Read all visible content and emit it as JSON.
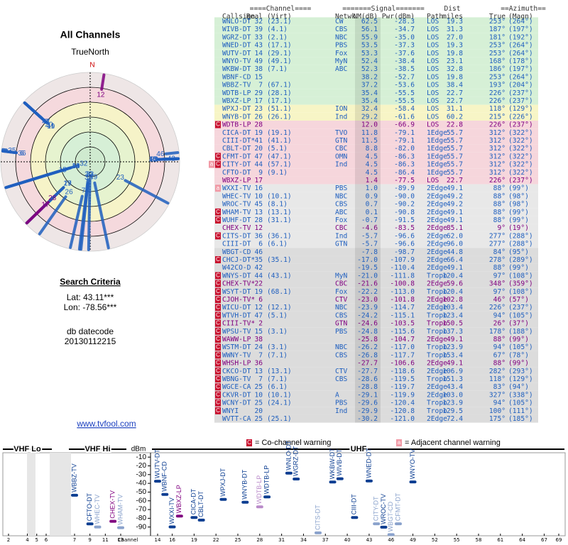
{
  "left": {
    "title": "All Channels",
    "north_label": "TrueNorth",
    "north": "N",
    "criteria_title": "Search Criteria",
    "lat": "Lat: 43.11***",
    "lon": "Lon: -78.56***",
    "db_label": "db datecode",
    "db_value": "20130112215",
    "link": "www.tvfool.com"
  },
  "table": {
    "group_headers": [
      "====Channel====",
      "=======Signal=======",
      "Dist",
      "==Azimuth=="
    ],
    "headers": [
      "Callsign",
      "Real",
      "(Virt)",
      "Netwk",
      "NM(dB)",
      "Pwr(dBm)",
      "Path",
      "miles",
      "True",
      "(Magn)"
    ],
    "color": "#1f5fbf",
    "rows": [
      {
        "cells": [
          "WNLO-DT",
          "32",
          "(23.1)",
          "CW",
          "62.5",
          "-28.3",
          "LOS",
          "19.3",
          "253°",
          "(264°)"
        ],
        "bg": "#d6f0d6"
      },
      {
        "cells": [
          "WIVB-DT",
          "39",
          "(4.1)",
          "CBS",
          "56.1",
          "-34.7",
          "LOS",
          "31.3",
          "187°",
          "(197°)"
        ],
        "bg": "#d6f0d6"
      },
      {
        "cells": [
          "WGRZ-DT",
          "33",
          "(2.1)",
          "NBC",
          "55.9",
          "-35.0",
          "LOS",
          "27.0",
          "181°",
          "(192°)"
        ],
        "bg": "#d6f0d6"
      },
      {
        "cells": [
          "WNED-DT",
          "43",
          "(17.1)",
          "PBS",
          "53.5",
          "-37.3",
          "LOS",
          "19.3",
          "253°",
          "(264°)"
        ],
        "bg": "#d6f0d6"
      },
      {
        "cells": [
          "WUTV-DT",
          "14",
          "(29.1)",
          "Fox",
          "53.3",
          "-37.6",
          "LOS",
          "19.8",
          "253°",
          "(264°)"
        ],
        "bg": "#d6f0d6"
      },
      {
        "cells": [
          "WNYO-TV",
          "49",
          "(49.1)",
          "MyN",
          "52.4",
          "-38.4",
          "LOS",
          "23.1",
          "168°",
          "(178°)"
        ],
        "bg": "#d6f0d6"
      },
      {
        "cells": [
          "WKBW-DT",
          "38",
          "(7.1)",
          "ABC",
          "52.3",
          "-38.5",
          "LOS",
          "32.8",
          "186°",
          "(197°)"
        ],
        "bg": "#d6f0d6"
      },
      {
        "cells": [
          "WBNF-CD",
          "15",
          null,
          null,
          "38.2",
          "-52.7",
          "LOS",
          "19.8",
          "253°",
          "(264°)"
        ],
        "bg": "#d6f0d6"
      },
      {
        "cells": [
          "WBBZ-TV",
          "7",
          "(67.1)",
          null,
          "37.2",
          "-53.6",
          "LOS",
          "38.4",
          "193°",
          "(204°)"
        ],
        "bg": "#d6f0d6"
      },
      {
        "cells": [
          "WDTB-LP",
          "29",
          "(28.1)",
          null,
          "35.4",
          "-55.5",
          "LOS",
          "22.7",
          "226°",
          "(237°)"
        ],
        "bg": "#d6f0d6"
      },
      {
        "cells": [
          "WBXZ-LP",
          "17",
          "(17.1)",
          null,
          "35.4",
          "-55.5",
          "LOS",
          "22.7",
          "226°",
          "(237°)"
        ],
        "bg": "#d6f0d6"
      },
      {
        "cells": [
          "WPXJ-DT",
          "23",
          "(51.1)",
          "ION",
          "32.4",
          "-58.4",
          "LOS",
          "31.1",
          "118°",
          "(129°)"
        ],
        "bg": "#f7f5c6"
      },
      {
        "cells": [
          "WNYB-DT",
          "26",
          "(26.1)",
          "Ind",
          "29.2",
          "-61.6",
          "LOS",
          "60.2",
          "215°",
          "(226°)"
        ],
        "bg": "#f7f5c6"
      },
      {
        "cells": [
          "WDTB-LP",
          "28",
          null,
          null,
          "12.0",
          "-66.9",
          "LOS",
          "22.8",
          "226°",
          "(237°)"
        ],
        "bg": "#f6d6dc",
        "color": "#800080",
        "warn": [
          "C"
        ]
      },
      {
        "cells": [
          "CICA-DT",
          "19",
          "(19.1)",
          "TVO",
          "11.8",
          "-79.1",
          "1Edge",
          "55.7",
          "312°",
          "(322°)"
        ],
        "bg": "#f6d6dc"
      },
      {
        "cells": [
          "CIII-DT*",
          "41",
          "(41.1)",
          "GTN",
          "11.5",
          "-79.1",
          "1Edge",
          "55.7",
          "312°",
          "(322°)"
        ],
        "bg": "#f6d6dc"
      },
      {
        "cells": [
          "CBLT-DT",
          "20",
          "(5.1)",
          "CBC",
          "8.8",
          "-82.0",
          "1Edge",
          "55.7",
          "312°",
          "(322°)"
        ],
        "bg": "#f6d6dc"
      },
      {
        "cells": [
          "CFMT-DT",
          "47",
          "(47.1)",
          "OMN",
          "4.5",
          "-86.3",
          "1Edge",
          "55.7",
          "312°",
          "(322°)"
        ],
        "bg": "#f6d6dc",
        "warn": [
          "C"
        ]
      },
      {
        "cells": [
          "CITY-DT",
          "44",
          "(57.1)",
          "Ind",
          "4.5",
          "-86.3",
          "1Edge",
          "55.7",
          "312°",
          "(322°)"
        ],
        "bg": "#f6d6dc",
        "warn": [
          "a",
          "C"
        ]
      },
      {
        "cells": [
          "CFTO-DT",
          "9",
          "(9.1)",
          null,
          "4.5",
          "-86.4",
          "1Edge",
          "55.7",
          "312°",
          "(322°)"
        ],
        "bg": "#f6d6dc"
      },
      {
        "cells": [
          "WBXZ-LP",
          "17",
          null,
          null,
          "1.4",
          "-77.5",
          "LOS",
          "22.7",
          "226°",
          "(237°)"
        ],
        "bg": "#f6d6dc",
        "color": "#800080"
      },
      {
        "cells": [
          "WXXI-TV",
          "16",
          null,
          "PBS",
          "1.0",
          "-89.9",
          "2Edge",
          "49.1",
          "88°",
          "(99°)"
        ],
        "bg": "#e8e8e8",
        "warn": [
          "a"
        ]
      },
      {
        "cells": [
          "WHEC-TV",
          "10",
          "(10.1)",
          "NBC",
          "0.9",
          "-90.0",
          "2Edge",
          "49.2",
          "88°",
          "(98°)"
        ],
        "bg": "#e8e8e8"
      },
      {
        "cells": [
          "WROC-TV",
          "45",
          "(8.1)",
          "CBS",
          "0.7",
          "-90.2",
          "2Edge",
          "49.2",
          "88°",
          "(98°)"
        ],
        "bg": "#e8e8e8"
      },
      {
        "cells": [
          "WHAM-TV",
          "13",
          "(13.1)",
          "ABC",
          "0.1",
          "-90.8",
          "2Edge",
          "49.1",
          "88°",
          "(99°)"
        ],
        "bg": "#e8e8e8",
        "warn": [
          "C"
        ]
      },
      {
        "cells": [
          "WUHF-DT",
          "28",
          "(31.1)",
          "Fox",
          "-0.7",
          "-91.5",
          "2Edge",
          "49.1",
          "88°",
          "(99°)"
        ],
        "bg": "#e8e8e8",
        "warn": [
          "C"
        ]
      },
      {
        "cells": [
          "CHEX-TV",
          "12",
          null,
          "CBC",
          "-4.6",
          "-83.5",
          "2Edge",
          "85.1",
          "9°",
          "(19°)"
        ],
        "bg": "#e8e8e8",
        "color": "#800080"
      },
      {
        "cells": [
          "CITS-DT",
          "36",
          "(36.1)",
          "Ind",
          "-5.7",
          "-96.6",
          "2Edge",
          "62.0",
          "277°",
          "(288°)"
        ],
        "bg": "#e8e8e8",
        "warn": [
          "C"
        ]
      },
      {
        "cells": [
          "CIII-DT",
          "6",
          "(6.1)",
          "GTN",
          "-5.7",
          "-96.6",
          "2Edge",
          "96.0",
          "277°",
          "(288°)"
        ],
        "bg": "#e8e8e8"
      },
      {
        "cells": [
          "WBGT-CD",
          "46",
          null,
          null,
          "-7.8",
          "-98.7",
          "2Edge",
          "44.8",
          "84°",
          "(95°)"
        ],
        "bg": "#dcdcdc"
      },
      {
        "cells": [
          "CHCJ-DT*",
          "35",
          "(35.1)",
          null,
          "-17.0",
          "-107.9",
          "2Edge",
          "66.4",
          "278°",
          "(289°)"
        ],
        "bg": "#dcdcdc",
        "warn": [
          "C"
        ]
      },
      {
        "cells": [
          "W42CO-D",
          "42",
          null,
          null,
          "-19.5",
          "-110.4",
          "2Edge",
          "49.1",
          "88°",
          "(99°)"
        ],
        "bg": "#dcdcdc"
      },
      {
        "cells": [
          "WNYS-DT",
          "44",
          "(43.1)",
          "MyN",
          "-21.0",
          "-111.8",
          "Tropo",
          "120.4",
          "97°",
          "(108°)"
        ],
        "bg": "#dcdcdc",
        "warn": [
          "C"
        ]
      },
      {
        "cells": [
          "CHEX-TV*",
          "22",
          null,
          "CBC",
          "-21.6",
          "-100.8",
          "2Edge",
          "59.6",
          "348°",
          "(359°)"
        ],
        "bg": "#dcdcdc",
        "color": "#800080",
        "warn": [
          "C"
        ]
      },
      {
        "cells": [
          "WSYT-DT",
          "19",
          "(68.1)",
          "Fox",
          "-22.2",
          "-113.0",
          "Tropo",
          "120.4",
          "97°",
          "(108°)"
        ],
        "bg": "#dcdcdc",
        "warn": [
          "C"
        ]
      },
      {
        "cells": [
          "CJOH-TV*",
          "6",
          null,
          "CTV",
          "-23.0",
          "-101.8",
          "2Edge",
          "102.8",
          "46°",
          "(57°)"
        ],
        "bg": "#dcdcdc",
        "color": "#800080",
        "warn": [
          "C"
        ]
      },
      {
        "cells": [
          "WICU-DT",
          "12",
          "(12.1)",
          "NBC",
          "-23.9",
          "-114.7",
          "2Edge",
          "103.4",
          "226°",
          "(237°)"
        ],
        "bg": "#dcdcdc",
        "warn": [
          "C"
        ]
      },
      {
        "cells": [
          "WTVH-DT",
          "47",
          "(5.1)",
          "CBS",
          "-24.2",
          "-115.1",
          "Tropo",
          "123.4",
          "94°",
          "(105°)"
        ],
        "bg": "#dcdcdc",
        "warn": [
          "C"
        ]
      },
      {
        "cells": [
          "CIII-TV*",
          "2",
          null,
          "GTN",
          "-24.6",
          "-103.5",
          "Tropo",
          "150.5",
          "26°",
          "(37°)"
        ],
        "bg": "#dcdcdc",
        "color": "#800080",
        "warn": [
          "C"
        ]
      },
      {
        "cells": [
          "WPSU-TV",
          "15",
          "(3.1)",
          "PBS",
          "-24.8",
          "-115.6",
          "Tropo",
          "137.3",
          "178°",
          "(188°)"
        ],
        "bg": "#dcdcdc",
        "warn": [
          "C"
        ]
      },
      {
        "cells": [
          "WAWW-LP",
          "38",
          null,
          null,
          "-25.8",
          "-104.7",
          "2Edge",
          "49.1",
          "88°",
          "(99°)"
        ],
        "bg": "#dcdcdc",
        "color": "#800080",
        "warn": [
          "C"
        ]
      },
      {
        "cells": [
          "WSTM-DT",
          "24",
          "(3.1)",
          "NBC",
          "-26.2",
          "-117.0",
          "Tropo",
          "123.9",
          "94°",
          "(105°)"
        ],
        "bg": "#dcdcdc",
        "warn": [
          "C"
        ]
      },
      {
        "cells": [
          "WWNY-TV",
          "7",
          "(7.1)",
          "CBS",
          "-26.8",
          "-117.7",
          "Tropo",
          "153.4",
          "67°",
          "(78°)"
        ],
        "bg": "#dcdcdc",
        "warn": [
          "C"
        ]
      },
      {
        "cells": [
          "WHSH-LP",
          "36",
          null,
          null,
          "-27.7",
          "-106.6",
          "2Edge",
          "49.1",
          "88°",
          "(99°)"
        ],
        "bg": "#dcdcdc",
        "color": "#800080",
        "warn": [
          "C"
        ]
      },
      {
        "cells": [
          "CKCO-DT",
          "13",
          "(13.1)",
          "CTV",
          "-27.7",
          "-118.6",
          "2Edge",
          "106.9",
          "282°",
          "(293°)"
        ],
        "bg": "#dcdcdc",
        "warn": [
          "C"
        ]
      },
      {
        "cells": [
          "WBNG-TV",
          "7",
          "(7.1)",
          "CBS",
          "-28.6",
          "-119.5",
          "Tropo",
          "151.3",
          "118°",
          "(129°)"
        ],
        "bg": "#dcdcdc",
        "warn": [
          "C"
        ]
      },
      {
        "cells": [
          "WGCE-CA",
          "25",
          "(6.1)",
          null,
          "-28.8",
          "-119.7",
          "2Edge",
          "43.4",
          "83°",
          "(94°)"
        ],
        "bg": "#dcdcdc",
        "warn": [
          "C"
        ]
      },
      {
        "cells": [
          "CKVR-DT",
          "10",
          "(10.1)",
          "A",
          "-29.1",
          "-119.9",
          "2Edge",
          "103.0",
          "327°",
          "(338°)"
        ],
        "bg": "#dcdcdc",
        "warn": [
          "C"
        ]
      },
      {
        "cells": [
          "WCNY-DT",
          "25",
          "(24.1)",
          "PBS",
          "-29.6",
          "-120.4",
          "Tropo",
          "123.9",
          "94°",
          "(105°)"
        ],
        "bg": "#dcdcdc",
        "warn": [
          "C"
        ]
      },
      {
        "cells": [
          "WNYI",
          "20",
          null,
          "Ind",
          "-29.9",
          "-120.8",
          "Tropo",
          "129.5",
          "100°",
          "(111°)"
        ],
        "bg": "#dcdcdc",
        "warn": [
          "C"
        ]
      },
      {
        "cells": [
          "WVTT-CA",
          "25",
          "(25.1)",
          null,
          "-30.2",
          "-121.0",
          "2Edge",
          "72.4",
          "175°",
          "(185°)"
        ],
        "bg": "#dcdcdc"
      }
    ]
  },
  "legend": [
    {
      "badge": "C",
      "text": "= Co-channel warning",
      "color": "#c8102e"
    },
    {
      "badge": "a",
      "text": "= Adjacent channel warning",
      "color": "#f19aa6"
    }
  ],
  "chart_data": {
    "type": "scatter",
    "y_label": "dBm",
    "x_label": "Channel",
    "bands": [
      {
        "name": "VHF Lo",
        "range": [
          2,
          6
        ]
      },
      {
        "name": "VHF Hi",
        "range": [
          7,
          13
        ]
      },
      {
        "name": "UHF",
        "range": [
          14,
          69
        ]
      }
    ],
    "xlim": [
      2,
      69
    ],
    "xticks": [
      2,
      4,
      5,
      6,
      7,
      9,
      11,
      13,
      14,
      16,
      19,
      22,
      25,
      28,
      31,
      34,
      37,
      40,
      43,
      46,
      49,
      52,
      55,
      58,
      61,
      64,
      67,
      69
    ],
    "ylim": [
      -100,
      -5
    ],
    "yticks": [
      -10,
      -20,
      -30,
      -40,
      -50,
      -60,
      -70,
      -80,
      -90
    ],
    "x": [
      7,
      9,
      10,
      12,
      13,
      14,
      15,
      16,
      17,
      19,
      20,
      23,
      26,
      28,
      29,
      32,
      33,
      36,
      38,
      39,
      41,
      43,
      44,
      45,
      46,
      47,
      49
    ],
    "values": [
      -53.6,
      -86.4,
      -90.0,
      -83.5,
      -90.8,
      -37.6,
      -52.7,
      -89.9,
      -77.5,
      -79.1,
      -82.0,
      -58.4,
      -61.6,
      -66.9,
      -55.5,
      -28.3,
      -35.0,
      -96.6,
      -38.5,
      -34.7,
      -79.1,
      -37.3,
      -86.3,
      -90.2,
      -98.7,
      -86.3,
      -38.4
    ],
    "labels": [
      "WBBZ-TV",
      "CFTO-DT",
      "WHEC-TV",
      "CHEX-TV",
      "WHAM-TV",
      "WUTV-DT",
      "WBNF-CD",
      "WXXI-TV",
      "WBXZ-LP",
      "CICA-DT",
      "CBLT-DT",
      "WPXJ-DT",
      "WNYB-DT",
      "WDTB-LP",
      "WDTB-LP",
      "WNLO-DT",
      "WGRZ-DT",
      "CITS-DT",
      "WKBW-DT",
      "WIVB-DT",
      "CIII-DT",
      "WNED-DT",
      "CITY-DT",
      "WROC-TV",
      "WBGT-CD",
      "CFMT-DT",
      "WNYO-TV"
    ],
    "colors": [
      "#0b3d91",
      "#0b3d91",
      "#8aa2cc",
      "#800080",
      "#8aa2cc",
      "#0b3d91",
      "#0b3d91",
      "#0b3d91",
      "#800080",
      "#0b3d91",
      "#0b3d91",
      "#0b3d91",
      "#0b3d91",
      "#b98ac9",
      "#0b3d91",
      "#0b3d91",
      "#0b3d91",
      "#8aa2cc",
      "#0b3d91",
      "#0b3d91",
      "#0b3d91",
      "#0b3d91",
      "#8aa2cc",
      "#0b3d91",
      "#8aa2cc",
      "#8aa2cc",
      "#0b3d91"
    ]
  }
}
